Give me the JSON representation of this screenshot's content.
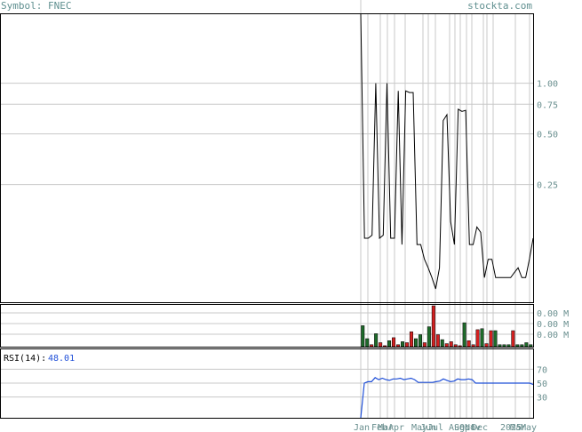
{
  "header": {
    "symbol_label": "Symbol: FNEC",
    "site": "stockta.com"
  },
  "colors": {
    "grid": "#c8c8c8",
    "frame": "#000000",
    "price_line": "#000000",
    "up_bar": "#1e6b2a",
    "down_bar": "#d42020",
    "rsi_line": "#1f4fd8",
    "rsi_value": "#1f4fd8",
    "axis_text": "#6a8f8f"
  },
  "chart_data": [
    {
      "type": "line",
      "name": "price",
      "scale": "log",
      "y_ticks": [
        "1.00",
        "0.75",
        "0.50",
        "0.25"
      ],
      "y_tick_values": [
        1.0,
        0.75,
        0.5,
        0.25
      ],
      "ylim": [
        0.05,
        2.6
      ],
      "x_labels": [
        "Jan",
        "Feb",
        "Mar",
        "Apr",
        "May",
        "Jun",
        "Jul",
        "Aug",
        "Sep",
        "Oct",
        "Nov",
        "Dec",
        "2025",
        "Mar",
        "May"
      ],
      "values": [
        2.6,
        0.12,
        0.12,
        0.125,
        1.0,
        0.12,
        0.125,
        1.0,
        0.12,
        0.12,
        0.9,
        0.11,
        0.9,
        0.88,
        0.88,
        0.11,
        0.11,
        0.09,
        0.08,
        0.07,
        0.06,
        0.08,
        0.6,
        0.65,
        0.15,
        0.11,
        0.7,
        0.68,
        0.69,
        0.11,
        0.11,
        0.14,
        0.13,
        0.07,
        0.09,
        0.09,
        0.07,
        0.07,
        0.07,
        0.07,
        0.07,
        0.075,
        0.08,
        0.07,
        0.07,
        0.09,
        0.12
      ]
    },
    {
      "type": "bar",
      "name": "volume",
      "y_ticks": [
        "0.00 M",
        "0.00 M",
        "0.00 M"
      ],
      "values": [
        21,
        8,
        2,
        13,
        4,
        1,
        6,
        9,
        2,
        5,
        4,
        15,
        8,
        12,
        4,
        20,
        41,
        12,
        7,
        3,
        5,
        2,
        1,
        24,
        6,
        2,
        17,
        18,
        3,
        16,
        16,
        2,
        2,
        2,
        16,
        2,
        2,
        4,
        2
      ],
      "directions": [
        "up",
        "up",
        "down",
        "up",
        "down",
        "down",
        "up",
        "down",
        "down",
        "up",
        "down",
        "down",
        "up",
        "up",
        "down",
        "up",
        "down",
        "down",
        "up",
        "down",
        "down",
        "down",
        "down",
        "up",
        "down",
        "down",
        "down",
        "up",
        "down",
        "down",
        "up",
        "up",
        "up",
        "up",
        "down",
        "up",
        "up",
        "up",
        "up"
      ]
    },
    {
      "type": "line",
      "name": "RSI(14)",
      "label": "RSI(14):",
      "value": "48.01",
      "y_ticks": [
        "70",
        "50",
        "30"
      ],
      "y_tick_values": [
        70,
        50,
        30
      ],
      "ylim": [
        0,
        100
      ],
      "values": [
        0,
        50,
        52,
        52,
        58,
        55,
        57,
        55,
        54,
        56,
        56,
        57,
        55,
        56,
        57,
        55,
        51,
        51,
        51,
        51,
        51,
        52,
        53,
        56,
        54,
        52,
        53,
        56,
        55,
        55,
        56,
        55,
        50,
        50,
        50,
        50,
        50,
        50,
        50,
        50,
        50,
        50,
        50,
        50,
        50,
        50,
        50,
        50,
        48
      ]
    }
  ]
}
